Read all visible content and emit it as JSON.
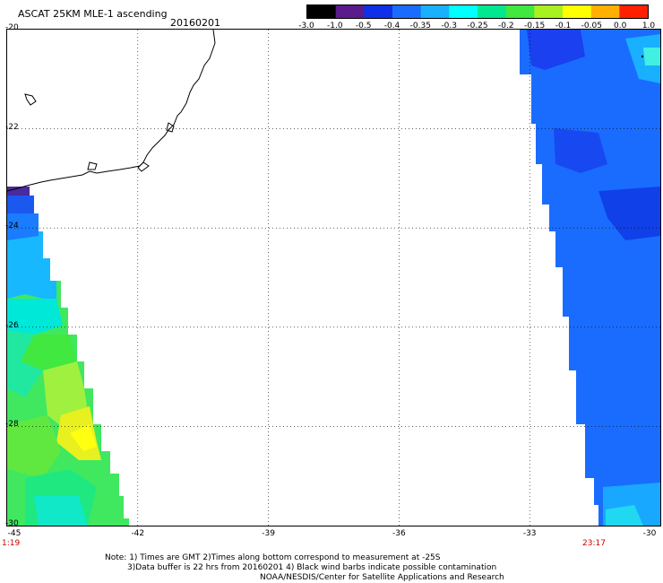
{
  "header": {
    "title": "ASCAT 25KM MLE-1 ascending",
    "date": "20160201"
  },
  "colorbar": {
    "labels": [
      "-3.0",
      "-1.0",
      "-0.5",
      "-0.4",
      "-0.35",
      "-0.3",
      "-0.25",
      "-0.2",
      "-0.15",
      "-0.1",
      "-0.05",
      "0.0",
      "1.0"
    ],
    "colors": [
      "#000000",
      "#5a1c8c",
      "#1030e8",
      "#1a6cff",
      "#18b0ff",
      "#00ffff",
      "#00e890",
      "#40e840",
      "#a8f020",
      "#ffff00",
      "#ffb000",
      "#ff2000"
    ]
  },
  "axes": {
    "lat_labels": [
      "-20",
      "-22",
      "-24",
      "-26",
      "-28",
      "-30"
    ],
    "lon_labels": [
      "-45",
      "-42",
      "-39",
      "-36",
      "-33",
      "-30"
    ]
  },
  "times": {
    "left": "1:19",
    "right": "23:17"
  },
  "notes": {
    "line1": "Note: 1) Times are GMT 2)Times along bottom correspond to measurement at -25S",
    "line2": "3)Data buffer is 22 hrs from 20160201 4) Black wind barbs indicate possible contamination",
    "line3": "NOAA/NESDIS/Center for Satellite Applications and Research"
  }
}
